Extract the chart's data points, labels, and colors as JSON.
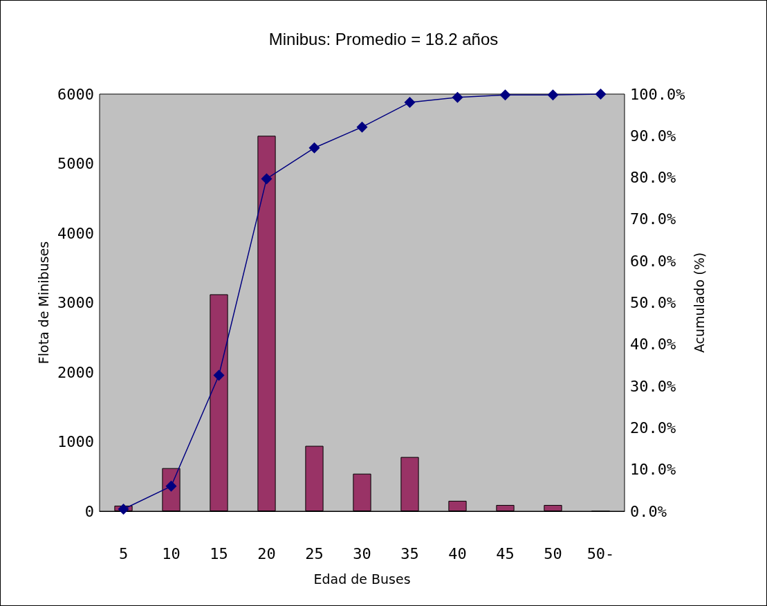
{
  "chart_data": {
    "type": "bar",
    "title": "Minibus: Promedio = 18.2 años",
    "xlabel": "Edad de Buses",
    "ylabel": "Flota de Minibuses",
    "y2label": "Acumulado (%)",
    "categories": [
      "5",
      "10",
      "15",
      "20",
      "25",
      "30",
      "35",
      "40",
      "45",
      "50",
      "50-"
    ],
    "series": [
      {
        "color": "#993366",
        "values": [
          80,
          620,
          3120,
          5400,
          940,
          540,
          780,
          150,
          90,
          90,
          0
        ]
      },
      {
        "type": "line",
        "axis": "y2",
        "color": "#000080",
        "marker": "diamond",
        "values": [
          0.5,
          6,
          32.6,
          79.7,
          87.1,
          92.1,
          98,
          99.2,
          99.8,
          99.8,
          100
        ]
      }
    ],
    "ylim": [
      0,
      6000
    ],
    "yticks": [
      0,
      1000,
      2000,
      3000,
      4000,
      5000,
      6000
    ],
    "y2lim": [
      0,
      100
    ],
    "y2ticks": [
      {
        "value": 0,
        "label": "0.0%"
      },
      {
        "value": 10,
        "label": "10.0%"
      },
      {
        "value": 20,
        "label": "20.0%"
      },
      {
        "value": 30,
        "label": "30.0%"
      },
      {
        "value": 40,
        "label": "40.0%"
      },
      {
        "value": 50,
        "label": "50.0%"
      },
      {
        "value": 60,
        "label": "60.0%"
      },
      {
        "value": 70,
        "label": "70.0%"
      },
      {
        "value": 80,
        "label": "80.0%"
      },
      {
        "value": 90,
        "label": "90.0%"
      },
      {
        "value": 100,
        "label": "100.0%"
      }
    ],
    "grid": false
  }
}
